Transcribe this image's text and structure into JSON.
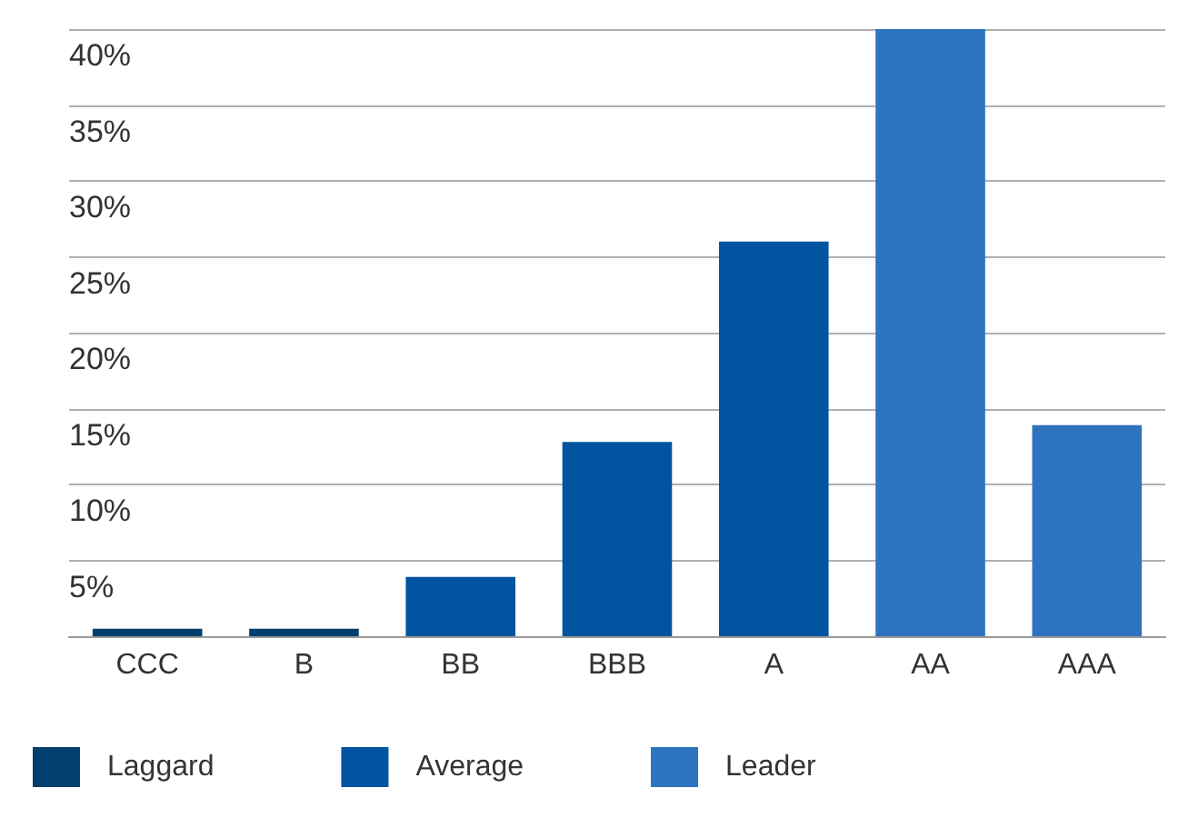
{
  "chart_data": {
    "type": "bar",
    "stacked": true,
    "categories": [
      "CCC",
      "B",
      "BB",
      "BBB",
      "A",
      "AA",
      "AAA"
    ],
    "series": [
      {
        "name": "Laggard",
        "color": "#003f6e",
        "values": [
          0.5,
          0.5,
          null,
          null,
          null,
          null,
          null
        ]
      },
      {
        "name": "Average",
        "color": "#0054a0",
        "values": [
          null,
          null,
          3.9,
          12.8,
          26,
          null,
          null
        ]
      },
      {
        "name": "Leader",
        "color": "#2e73bd",
        "values": [
          null,
          null,
          null,
          null,
          null,
          40,
          13.9
        ]
      }
    ],
    "ylim": [
      0,
      40
    ],
    "yticks": [
      {
        "value": 0,
        "label": null
      },
      {
        "value": 5,
        "label": "5%"
      },
      {
        "value": 10,
        "label": "10%"
      },
      {
        "value": 15,
        "label": "15%"
      },
      {
        "value": 20,
        "label": "20%"
      },
      {
        "value": 25,
        "label": "25%"
      },
      {
        "value": 30,
        "label": "30%"
      },
      {
        "value": 35,
        "label": "35%"
      },
      {
        "value": 40,
        "label": "40%"
      }
    ],
    "grid": "y",
    "legend": "bottom left"
  }
}
